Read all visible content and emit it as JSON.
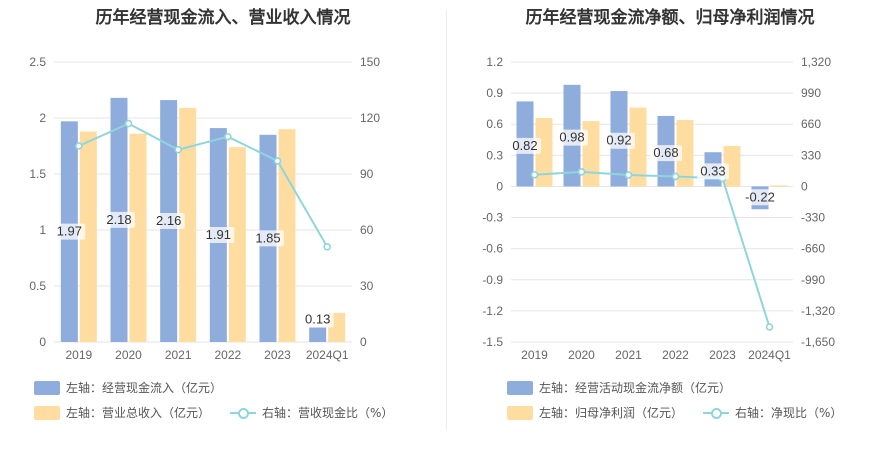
{
  "colors": {
    "blue": "#8eaddc",
    "orange": "#ffdca0",
    "line": "#8fd5dc",
    "grid": "#e6e6e6",
    "axis_text": "#666666"
  },
  "chart_data": [
    {
      "type": "bar",
      "title": "历年经营现金流入、营业收入情况",
      "categories": [
        "2019",
        "2020",
        "2021",
        "2022",
        "2023",
        "2024Q1"
      ],
      "y_left": {
        "ticks": [
          "0",
          "0.5",
          "1",
          "1.5",
          "2",
          "2.5"
        ],
        "min": 0,
        "max": 2.5
      },
      "y_right": {
        "ticks": [
          "0",
          "30",
          "60",
          "90",
          "120",
          "150"
        ],
        "min": 0,
        "max": 150
      },
      "series": [
        {
          "name": "左轴：经营现金流入（亿元）",
          "kind": "bar",
          "axis": "left",
          "color": "#8eaddc",
          "values": [
            1.97,
            2.18,
            2.16,
            1.91,
            1.85,
            0.13
          ],
          "labels": [
            "1.97",
            "2.18",
            "2.16",
            "1.91",
            "1.85",
            "0.13"
          ]
        },
        {
          "name": "左轴：营业总收入（亿元）",
          "kind": "bar",
          "axis": "left",
          "color": "#ffdca0",
          "values": [
            1.88,
            1.86,
            2.09,
            1.74,
            1.9,
            0.26
          ]
        },
        {
          "name": "右轴：营收现金比（%）",
          "kind": "line",
          "axis": "right",
          "color": "#8fd5dc",
          "values": [
            105,
            117,
            103,
            110,
            97,
            51
          ]
        }
      ]
    },
    {
      "type": "bar",
      "title": "历年经营现金流净额、归母净利润情况",
      "categories": [
        "2019",
        "2020",
        "2021",
        "2022",
        "2023",
        "2024Q1"
      ],
      "y_left": {
        "ticks": [
          "-1.5",
          "-1.2",
          "-0.9",
          "-0.6",
          "-0.3",
          "0",
          "0.3",
          "0.6",
          "0.9",
          "1.2"
        ],
        "min": -1.5,
        "max": 1.2
      },
      "y_right": {
        "ticks": [
          "-1,650",
          "-1,320",
          "-990",
          "-660",
          "-330",
          "0",
          "330",
          "660",
          "990",
          "1,320"
        ],
        "min": -1650,
        "max": 1320
      },
      "series": [
        {
          "name": "左轴：经营活动现金流净额（亿元）",
          "kind": "bar",
          "axis": "left",
          "color": "#8eaddc",
          "values": [
            0.82,
            0.98,
            0.92,
            0.68,
            0.33,
            -0.22
          ],
          "labels": [
            "0.82",
            "0.98",
            "0.92",
            "0.68",
            "0.33",
            "-0.22"
          ]
        },
        {
          "name": "左轴：归母净利润（亿元）",
          "kind": "bar",
          "axis": "left",
          "color": "#ffdca0",
          "values": [
            0.66,
            0.63,
            0.76,
            0.64,
            0.39,
            0.01
          ]
        },
        {
          "name": "右轴：净现比（%）",
          "kind": "line",
          "axis": "right",
          "color": "#8fd5dc",
          "values": [
            124,
            155,
            121,
            106,
            85,
            -1490
          ]
        }
      ]
    }
  ]
}
